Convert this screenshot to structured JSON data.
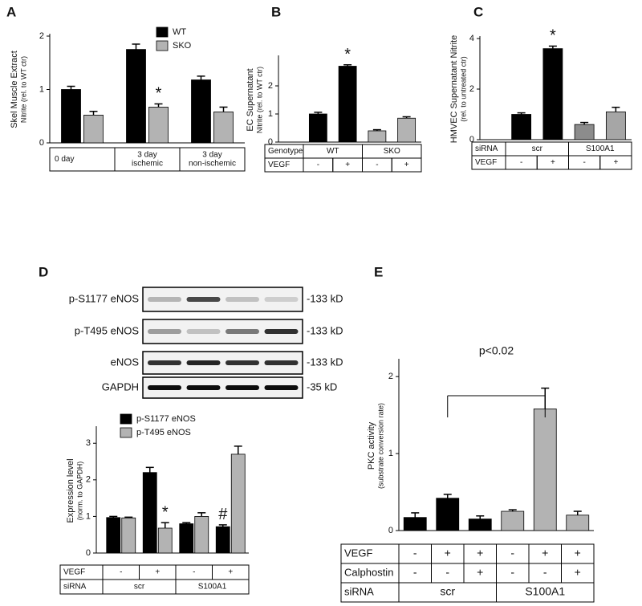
{
  "blot": {
    "rows": [
      {
        "label": "p-S1177 eNOS",
        "size": "-133 kD"
      },
      {
        "label": "p-T495 eNOS",
        "size": "-133 kD"
      },
      {
        "label": "eNOS",
        "size": "-133 kD"
      },
      {
        "label": "GAPDH",
        "size": "-35 kD"
      }
    ]
  },
  "chart_data": [
    {
      "type": "bar",
      "panel": "A",
      "ylabel": [
        "Skel Muscle Extract",
        "Nitrite (rel. to WT ctr)"
      ],
      "categories": [
        [
          "0 day"
        ],
        [
          "3 day",
          "ischemic"
        ],
        [
          "3 day",
          "non-ischemic"
        ]
      ],
      "series": [
        {
          "name": "WT",
          "color": "#000000",
          "values": [
            1.0,
            1.75,
            1.18
          ],
          "errors": [
            0.06,
            0.1,
            0.07
          ],
          "annotations": [
            null,
            null,
            null
          ]
        },
        {
          "name": "SKO",
          "color": "#b3b3b3",
          "values": [
            0.52,
            0.67,
            0.58
          ],
          "errors": [
            0.07,
            0.06,
            0.09
          ],
          "annotations": [
            null,
            "*",
            null
          ]
        }
      ],
      "ylim": [
        0,
        2
      ],
      "yticks": [
        0,
        1,
        2
      ]
    },
    {
      "type": "bar",
      "panel": "B",
      "ylabel": [
        "EC Supernatant",
        "Nitrite (rel. to WT ctr)"
      ],
      "values": [
        1.0,
        2.7,
        0.4,
        0.85
      ],
      "errors": [
        0.06,
        0.05,
        0.04,
        0.05
      ],
      "colors": [
        "#000000",
        "#000000",
        "#b3b3b3",
        "#b3b3b3"
      ],
      "annotations": [
        null,
        "*",
        null,
        null
      ],
      "ylim": [
        0,
        3
      ],
      "yticks": [
        0,
        1,
        2
      ],
      "table": [
        {
          "label": "Genotype",
          "cells": [
            "WT",
            "SKO"
          ]
        },
        {
          "label": "VEGF",
          "cells": [
            "-",
            "+",
            "-",
            "+"
          ]
        }
      ]
    },
    {
      "type": "bar",
      "panel": "C",
      "ylabel": [
        "HMVEC Supernatant Nitrite",
        "(rel. to untreated ctr)"
      ],
      "values": [
        1.0,
        3.6,
        0.6,
        1.1
      ],
      "errors": [
        0.06,
        0.1,
        0.08,
        0.18
      ],
      "colors": [
        "#000000",
        "#000000",
        "#8c8c8c",
        "#a6a6a6"
      ],
      "annotations": [
        null,
        "*",
        null,
        null
      ],
      "ylim": [
        0,
        4
      ],
      "yticks": [
        0,
        2,
        4
      ],
      "table": [
        {
          "label": "siRNA",
          "cells": [
            "scr",
            "S100A1"
          ]
        },
        {
          "label": "VEGF",
          "cells": [
            "-",
            "+",
            "-",
            "+"
          ]
        }
      ]
    },
    {
      "type": "bar",
      "panel": "D",
      "ylabel": [
        "Expression level",
        "(norm. to GAPDH)"
      ],
      "series": [
        {
          "name": "p-S1177 eNOS",
          "color": "#000000",
          "values": [
            0.97,
            2.2,
            0.8,
            0.72
          ],
          "errors": [
            0.03,
            0.14,
            0.03,
            0.05
          ],
          "annotations": [
            null,
            null,
            null,
            "#"
          ]
        },
        {
          "name": "p-T495 eNOS",
          "color": "#b3b3b3",
          "values": [
            0.96,
            0.68,
            1.0,
            2.7
          ],
          "errors": [
            0.02,
            0.15,
            0.1,
            0.22
          ],
          "annotations": [
            null,
            "*",
            null,
            null
          ]
        }
      ],
      "ylim": [
        0,
        3.4
      ],
      "yticks": [
        0,
        1,
        2,
        3
      ],
      "table": [
        {
          "label": "VEGF",
          "cells": [
            "-",
            "+",
            "-",
            "+"
          ]
        },
        {
          "label": "siRNA",
          "cells": [
            "scr",
            "S100A1"
          ]
        }
      ]
    },
    {
      "type": "bar",
      "panel": "E",
      "ylabel": [
        "PKC activity",
        "(substrate conversion rate)"
      ],
      "values": [
        0.17,
        0.42,
        0.15,
        0.25,
        1.58,
        0.2
      ],
      "errors": [
        0.06,
        0.05,
        0.04,
        0.02,
        0.27,
        0.05
      ],
      "colors": [
        "#000000",
        "#000000",
        "#000000",
        "#b3b3b3",
        "#b3b3b3",
        "#b3b3b3"
      ],
      "annotations": [
        null,
        null,
        null,
        null,
        null,
        null
      ],
      "bracket_label": "p<0.02",
      "ylim": [
        0,
        2.2
      ],
      "yticks": [
        0,
        1,
        2
      ],
      "table": [
        {
          "label": "VEGF",
          "cells": [
            "-",
            "+",
            "+",
            "-",
            "+",
            "+"
          ]
        },
        {
          "label": "Calphostin",
          "cells": [
            "-",
            "-",
            "+",
            "-",
            "-",
            "+"
          ]
        },
        {
          "label": "siRNA",
          "cells": [
            "scr",
            "S100A1"
          ]
        }
      ]
    }
  ]
}
